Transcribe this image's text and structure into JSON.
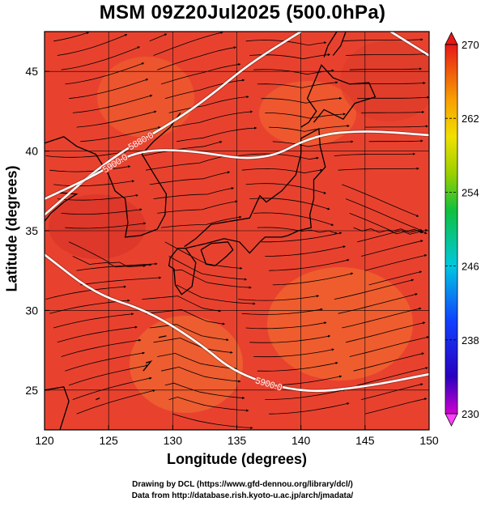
{
  "title": "MSM 09Z20Jul2025 (500.0hPa)",
  "xlabel": "Longitude (degrees)",
  "ylabel": "Latitude  (degrees)",
  "x_ticks": [
    "120",
    "125",
    "130",
    "135",
    "140",
    "145",
    "150"
  ],
  "y_ticks": [
    "25",
    "30",
    "35",
    "40",
    "45"
  ],
  "colorbar_ticks": [
    "270",
    "262",
    "254",
    "246",
    "238",
    "230"
  ],
  "contour_labels": [
    "5880.0",
    "5900.0",
    "5900.0"
  ],
  "credit_line1": "Drawing by DCL (https://www.gfd-dennou.org/library/dcl/)",
  "credit_line2": "Data from http://database.rish.kyoto-u.ac.jp/arch/jmadata/",
  "colors": {
    "field_base": "#e8422f",
    "field_warm": "#f26a2e",
    "contour": "#ffffff",
    "coast": "#000000"
  },
  "chart_data": {
    "type": "heatmap",
    "x_range": [
      120,
      150
    ],
    "y_range": [
      22.5,
      47.5
    ],
    "colorbar_range": [
      230,
      270
    ],
    "grid": true,
    "contours": [
      {
        "label": "5880.0",
        "points": [
          [
            120,
            36
          ],
          [
            125,
            39.5
          ],
          [
            130,
            41.8
          ],
          [
            133,
            43.5
          ],
          [
            136,
            45.5
          ],
          [
            140,
            47.5
          ]
        ]
      },
      {
        "label": "5900.0",
        "points": [
          [
            120,
            37
          ],
          [
            124,
            38.5
          ],
          [
            127,
            40.0
          ],
          [
            131,
            40.1
          ],
          [
            137,
            39.3
          ],
          [
            141,
            41
          ],
          [
            145,
            41.3
          ],
          [
            150,
            41
          ]
        ]
      },
      {
        "label": "5900.0",
        "points": [
          [
            120,
            33.5
          ],
          [
            124,
            31.0
          ],
          [
            128,
            30.0
          ],
          [
            132,
            28.0
          ],
          [
            135,
            26.0
          ],
          [
            140,
            24.8
          ],
          [
            145,
            25.2
          ],
          [
            150,
            26
          ]
        ]
      },
      {
        "label": "",
        "points": [
          [
            147,
            47.5
          ],
          [
            150,
            46
          ]
        ]
      }
    ]
  }
}
